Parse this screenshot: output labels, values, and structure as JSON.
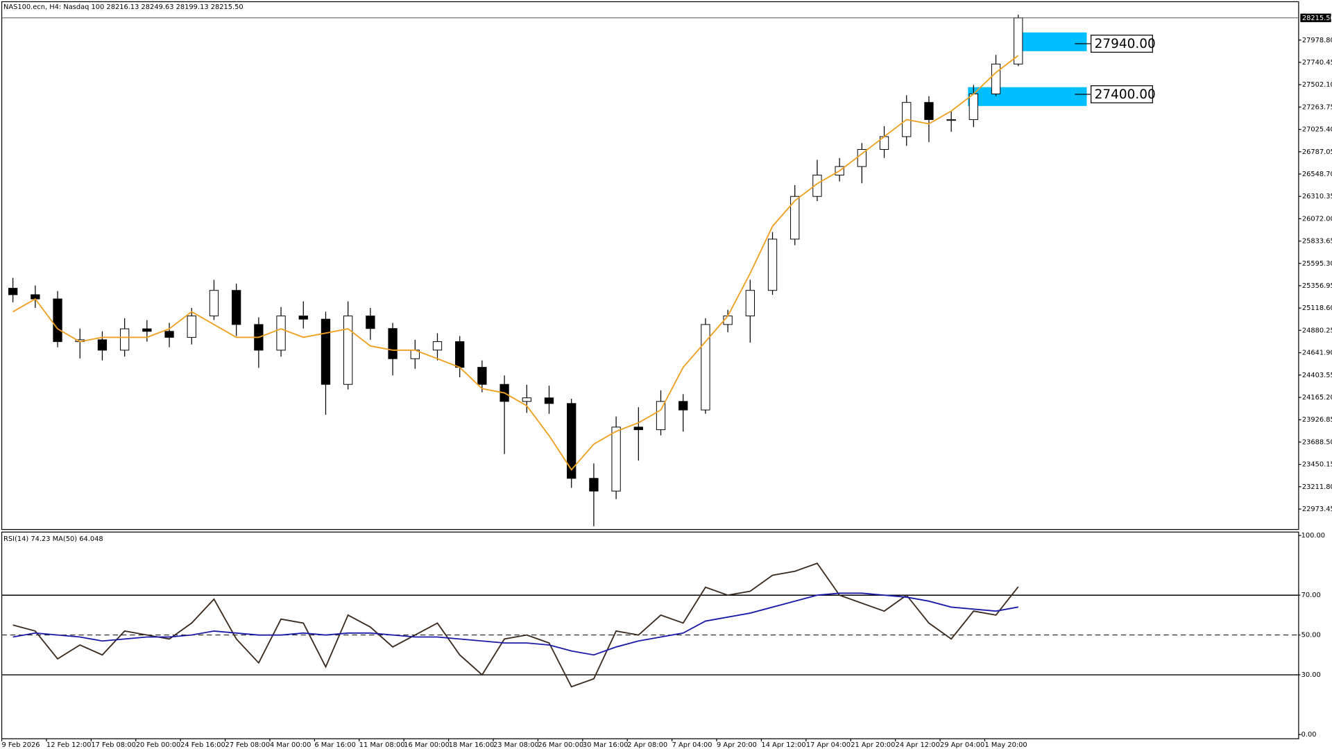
{
  "chart_data": [
    {
      "type": "candlestick",
      "title": "NAS100.ecn, H4:  Nasdaq 100  28216.13 28249.63 28199.13 28215.50",
      "categories": [
        "9 Feb 2026",
        null,
        "12 Feb 12:00",
        null,
        "17 Feb 08:00",
        null,
        "20 Feb 00:00",
        null,
        "24 Feb 16:00",
        null,
        "27 Feb 08:00",
        null,
        "4 Mar 00:00",
        null,
        "6 Mar 16:00",
        null,
        "11 Mar 08:00",
        null,
        "16 Mar 00:00",
        null,
        "18 Mar 16:00",
        null,
        "23 Mar 08:00",
        null,
        "26 Mar 00:00",
        null,
        "30 Mar 16:00",
        null,
        "2 Apr 08:00",
        null,
        "7 Apr 04:00",
        null,
        "9 Apr 20:00",
        null,
        "14 Apr 12:00",
        null,
        "17 Apr 04:00",
        null,
        "21 Apr 20:00",
        null,
        "24 Apr 12:00",
        null,
        "29 Apr 04:00",
        null,
        "1 May 20:00",
        null
      ],
      "open": [
        25330,
        25261,
        25216,
        24760,
        24780,
        24669,
        24897,
        24870,
        24806,
        25034,
        25307,
        24943,
        24669,
        25034,
        25000,
        24304,
        25034,
        24900,
        24578,
        24670,
        24760,
        24486,
        24304,
        24122,
        24160,
        24100,
        23301,
        23165,
        23848,
        23820,
        24122,
        24031,
        24943,
        25034,
        25307,
        25854,
        26310,
        26538,
        26629,
        26811,
        26948,
        27313,
        27130,
        27130,
        27404,
        27723
      ],
      "high": [
        25440,
        25360,
        25300,
        24900,
        24870,
        25010,
        24990,
        24960,
        25120,
        25420,
        25380,
        25020,
        25130,
        25190,
        25080,
        25190,
        25120,
        24960,
        24780,
        24850,
        24820,
        24560,
        24400,
        24300,
        24290,
        24150,
        23460,
        23960,
        24060,
        24240,
        24200,
        25010,
        25100,
        25420,
        25930,
        26430,
        26700,
        26720,
        26880,
        27060,
        27390,
        27380,
        27220,
        27500,
        27820,
        28249.63
      ],
      "low": [
        25180,
        25120,
        24700,
        24580,
        24560,
        24600,
        24760,
        24700,
        24730,
        24990,
        24820,
        24480,
        24600,
        24900,
        23980,
        24250,
        24780,
        24400,
        24470,
        24560,
        24380,
        24220,
        23560,
        24000,
        23990,
        23200,
        22790,
        23080,
        23490,
        23760,
        23800,
        23990,
        24860,
        24750,
        25260,
        25790,
        26260,
        26470,
        26450,
        26720,
        26850,
        26890,
        27000,
        27050,
        27380,
        27700
      ],
      "close": [
        25261,
        25216,
        24760,
        24780,
        24669,
        24897,
        24870,
        24806,
        25034,
        25307,
        24943,
        24669,
        25034,
        25000,
        24304,
        25034,
        24900,
        24578,
        24670,
        24760,
        24486,
        24304,
        24122,
        24160,
        24100,
        23301,
        23165,
        23848,
        23820,
        24122,
        24031,
        24943,
        25034,
        25307,
        25854,
        26310,
        26538,
        26629,
        26811,
        26948,
        27313,
        27130,
        27130,
        27404,
        27723,
        28215.5
      ],
      "ma": {
        "color": "#f0a020",
        "values": [
          25079,
          25216,
          24897,
          24760,
          24806,
          24806,
          24806,
          24897,
          25079,
          24943,
          24806,
          24806,
          24897,
          24806,
          24851,
          24897,
          24714,
          24669,
          24669,
          24578,
          24486,
          24258,
          24213,
          24076,
          23757,
          23393,
          23666,
          23803,
          23894,
          24031,
          24486,
          24760,
          25034,
          25489,
          25991,
          26264,
          26446,
          26583,
          26765,
          26948,
          27130,
          27085,
          27221,
          27404,
          27632,
          27814
        ]
      },
      "color_up": "#ffffff",
      "color_down": "#000000",
      "ylim": [
        22755,
        28224
      ],
      "yticks": [
        22973.45,
        {
          "value": 23211.8,
          "label": "23211.80"
        },
        23450.15,
        {
          "value": 23688.5,
          "label": "23688.50"
        },
        23926.85,
        {
          "value": 24165.2,
          "label": "24165.20"
        },
        24403.55,
        {
          "value": 24641.9,
          "label": "24641.90"
        },
        24880.25,
        {
          "value": 25118.6,
          "label": "25118.60"
        },
        25356.95,
        {
          "value": 25595.3,
          "label": "25595.30"
        },
        25833.65,
        {
          "value": 26072,
          "label": "26072.00"
        },
        26310.35,
        {
          "value": 26548.7,
          "label": "26548.70"
        },
        26787.05,
        {
          "value": 27025.4,
          "label": "27025.40"
        },
        27263.75,
        {
          "value": 27502.1,
          "label": "27502.10"
        },
        27740.45,
        {
          "value": 27978.8,
          "label": "27978.80"
        }
      ],
      "current_price": {
        "value": 28215.5,
        "label": "28215.50"
      },
      "zones": [
        {
          "value": 27940,
          "label": "27940.00",
          "top": 28060,
          "bottom": 27860,
          "color": "#00bfff"
        },
        {
          "value": 27400,
          "label": "27400.00",
          "top": 27476,
          "bottom": 27275,
          "color": "#00bfff"
        }
      ]
    },
    {
      "type": "line",
      "title": "RSI(14) 74.23 MA(50) 64.048",
      "series": [
        {
          "color": "#3b2a1e",
          "values": [
            55,
            52,
            38,
            45,
            40,
            52,
            50,
            48,
            56,
            68,
            48,
            36,
            58,
            56,
            34,
            60,
            54,
            44,
            50,
            56,
            40,
            30,
            48,
            50,
            46,
            24,
            28,
            52,
            50,
            60,
            56,
            74,
            70,
            72,
            80,
            82,
            86,
            70,
            66,
            62,
            70,
            56,
            48,
            62,
            60,
            74.23
          ]
        },
        {
          "color": "#1a1aa8",
          "values": [
            49,
            51,
            50,
            49,
            47,
            48,
            49,
            49,
            50,
            52,
            51,
            50,
            50,
            51,
            50,
            51,
            51,
            50,
            49,
            49,
            48,
            47,
            46,
            46,
            45,
            42,
            40,
            44,
            47,
            49,
            51,
            57,
            59,
            61,
            64,
            67,
            70,
            71,
            71,
            70,
            69,
            67,
            64,
            63,
            62,
            64.048
          ]
        }
      ],
      "ylim": [
        -2.1,
        101.7
      ],
      "yticks": [
        {
          "value": 0,
          "label": "0.00"
        },
        {
          "value": 30,
          "label": "30.00"
        },
        {
          "value": 50,
          "label": "50.00"
        },
        {
          "value": 70,
          "label": "70.00"
        },
        {
          "value": 100,
          "label": "100.00"
        }
      ],
      "level_style": [
        "none",
        "solid",
        "dashed",
        "solid",
        "none"
      ]
    }
  ]
}
